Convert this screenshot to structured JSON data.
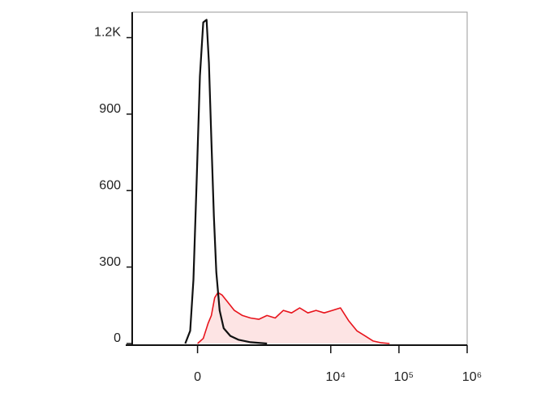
{
  "chart_data": {
    "type": "histogram-overlay",
    "x_scale": "biexponential",
    "xlim": [
      -1000,
      1000000
    ],
    "ylim": [
      0,
      1300
    ],
    "xticks": [
      0,
      {
        "value": 10000,
        "label": "10⁴"
      },
      {
        "value": 100000,
        "label": "10⁵"
      },
      {
        "value": 1000000,
        "label": "10⁶"
      }
    ],
    "yticks": [
      0,
      300,
      600,
      900,
      {
        "value": 1200,
        "label": "1.2K"
      }
    ],
    "series": [
      {
        "color": "#e8141c",
        "fill": "#fde4e4",
        "x": [
          0,
          43,
          82,
          108,
          136,
          166,
          207,
          251,
          354,
          483,
          649,
          868,
          1151,
          1523,
          2014,
          2658,
          3501,
          4617,
          6088,
          8016,
          10548,
          13893,
          18286,
          24151,
          31800,
          41924,
          55237,
          72698
        ],
        "values": [
          0,
          20,
          80,
          110,
          180,
          200,
          190,
          170,
          130,
          110,
          100,
          95,
          110,
          100,
          130,
          120,
          140,
          120,
          130,
          120,
          130,
          140,
          90,
          50,
          30,
          10,
          3,
          0
        ]
      },
      {
        "color": "#111111",
        "x": [
          -95,
          -56,
          -31,
          -6,
          18,
          43,
          69,
          88,
          108,
          129,
          151,
          182,
          223,
          300,
          414,
          649,
          1151
        ],
        "values": [
          0,
          50,
          250,
          650,
          1050,
          1260,
          1270,
          1100,
          800,
          500,
          280,
          130,
          60,
          30,
          15,
          5,
          0
        ]
      }
    ]
  }
}
